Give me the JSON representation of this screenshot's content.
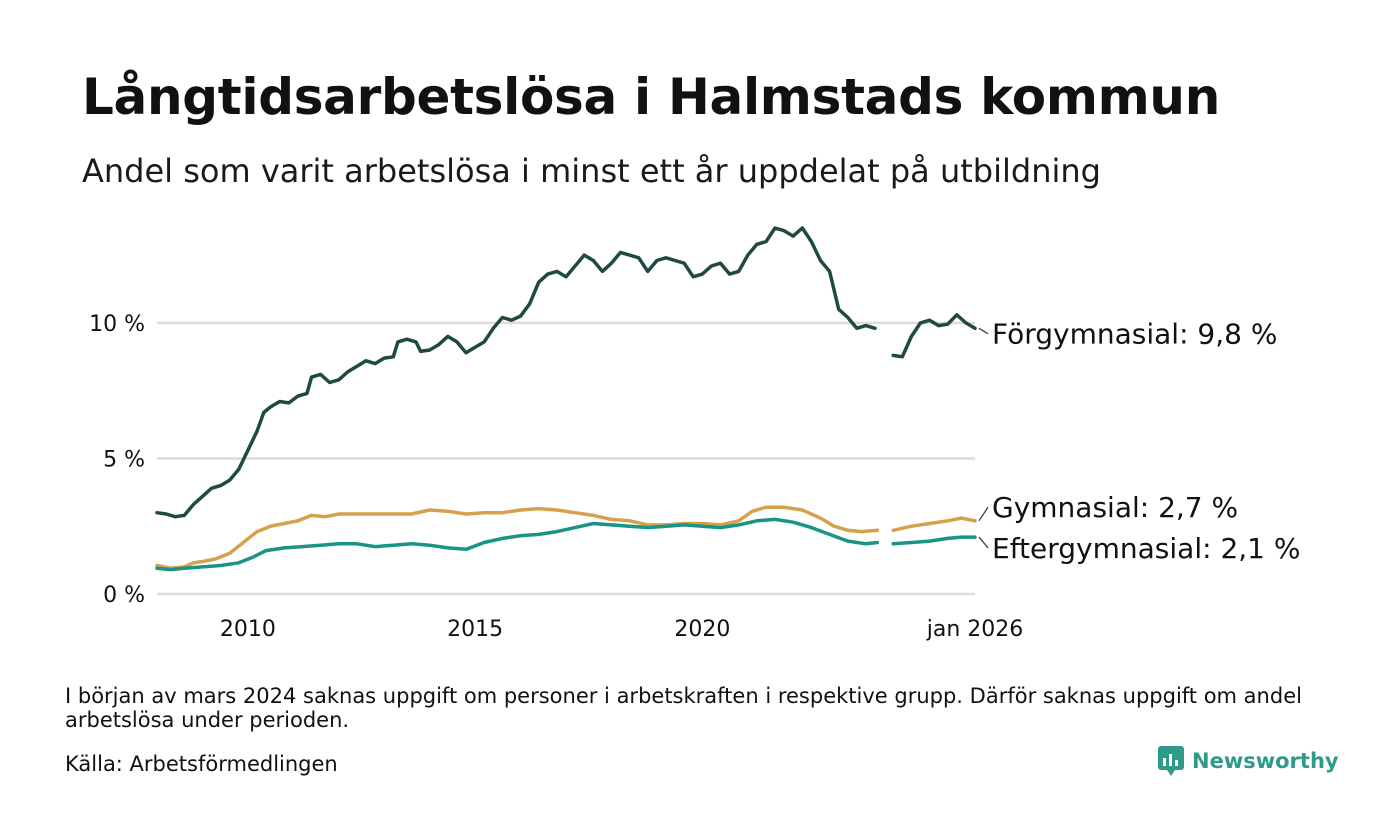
{
  "title": "Långtidsarbetslösa i Halmstads kommun",
  "subtitle": "Andel som varit arbetslösa i minst ett år uppdelat på utbildning",
  "note": "I början av mars 2024 saknas uppgift om personer i arbetskraften i respektive grupp. Därför saknas uppgift om andel arbetslösa under perioden.",
  "source": "Källa: Arbetsförmedlingen",
  "brand": {
    "name": "Newsworthy",
    "icon": "newsworthy-logo-icon",
    "color": "#2f9a8a"
  },
  "chart_data": {
    "type": "line",
    "title": "Långtidsarbetslösa i Halmstads kommun",
    "xlabel": "",
    "ylabel": "",
    "xlim": [
      2008.0,
      2026.0
    ],
    "ylim": [
      0,
      13.5
    ],
    "y_ticks": [
      {
        "value": 0,
        "label": "0 %"
      },
      {
        "value": 5,
        "label": "5 %"
      },
      {
        "value": 10,
        "label": "10 %"
      }
    ],
    "x_ticks": [
      {
        "value": 2010,
        "label": "2010"
      },
      {
        "value": 2015,
        "label": "2015"
      },
      {
        "value": 2020,
        "label": "2020"
      },
      {
        "value": 2026.0,
        "label": "jan 2026"
      }
    ],
    "grid": true,
    "gap": {
      "from": 2023.85,
      "to": 2024.2,
      "description": "saknad uppgift mars 2024"
    },
    "series": [
      {
        "name": "Förgymnasial",
        "label": "Förgymnasial: 9,8 %",
        "color": "#1f4a43",
        "label_value": 9.6,
        "points": [
          [
            2008.0,
            3.0
          ],
          [
            2008.2,
            2.95
          ],
          [
            2008.4,
            2.85
          ],
          [
            2008.6,
            2.9
          ],
          [
            2008.8,
            3.3
          ],
          [
            2009.0,
            3.6
          ],
          [
            2009.2,
            3.9
          ],
          [
            2009.4,
            4.0
          ],
          [
            2009.6,
            4.2
          ],
          [
            2009.8,
            4.6
          ],
          [
            2010.0,
            5.3
          ],
          [
            2010.2,
            6.0
          ],
          [
            2010.35,
            6.7
          ],
          [
            2010.5,
            6.9
          ],
          [
            2010.7,
            7.1
          ],
          [
            2010.9,
            7.05
          ],
          [
            2011.1,
            7.3
          ],
          [
            2011.3,
            7.4
          ],
          [
            2011.4,
            8.0
          ],
          [
            2011.6,
            8.1
          ],
          [
            2011.8,
            7.8
          ],
          [
            2012.0,
            7.9
          ],
          [
            2012.2,
            8.2
          ],
          [
            2012.4,
            8.4
          ],
          [
            2012.6,
            8.6
          ],
          [
            2012.8,
            8.5
          ],
          [
            2013.0,
            8.7
          ],
          [
            2013.2,
            8.75
          ],
          [
            2013.3,
            9.3
          ],
          [
            2013.5,
            9.4
          ],
          [
            2013.7,
            9.3
          ],
          [
            2013.8,
            8.95
          ],
          [
            2014.0,
            9.0
          ],
          [
            2014.2,
            9.2
          ],
          [
            2014.4,
            9.5
          ],
          [
            2014.6,
            9.3
          ],
          [
            2014.8,
            8.9
          ],
          [
            2015.0,
            9.1
          ],
          [
            2015.2,
            9.3
          ],
          [
            2015.4,
            9.8
          ],
          [
            2015.6,
            10.2
          ],
          [
            2015.8,
            10.1
          ],
          [
            2016.0,
            10.25
          ],
          [
            2016.2,
            10.7
          ],
          [
            2016.4,
            11.5
          ],
          [
            2016.6,
            11.8
          ],
          [
            2016.8,
            11.9
          ],
          [
            2017.0,
            11.7
          ],
          [
            2017.2,
            12.1
          ],
          [
            2017.4,
            12.5
          ],
          [
            2017.6,
            12.3
          ],
          [
            2017.8,
            11.9
          ],
          [
            2018.0,
            12.2
          ],
          [
            2018.2,
            12.6
          ],
          [
            2018.4,
            12.5
          ],
          [
            2018.6,
            12.4
          ],
          [
            2018.8,
            11.9
          ],
          [
            2019.0,
            12.3
          ],
          [
            2019.2,
            12.4
          ],
          [
            2019.4,
            12.3
          ],
          [
            2019.6,
            12.2
          ],
          [
            2019.8,
            11.7
          ],
          [
            2020.0,
            11.8
          ],
          [
            2020.2,
            12.1
          ],
          [
            2020.4,
            12.2
          ],
          [
            2020.6,
            11.8
          ],
          [
            2020.8,
            11.9
          ],
          [
            2021.0,
            12.5
          ],
          [
            2021.2,
            12.9
          ],
          [
            2021.4,
            13.0
          ],
          [
            2021.6,
            13.5
          ],
          [
            2021.8,
            13.4
          ],
          [
            2022.0,
            13.2
          ],
          [
            2022.2,
            13.5
          ],
          [
            2022.4,
            13.0
          ],
          [
            2022.6,
            12.3
          ],
          [
            2022.8,
            11.9
          ],
          [
            2023.0,
            10.5
          ],
          [
            2023.2,
            10.2
          ],
          [
            2023.4,
            9.8
          ],
          [
            2023.6,
            9.9
          ],
          [
            2023.8,
            9.8
          ],
          [
            2023.85,
            null
          ],
          [
            2024.2,
            8.8
          ],
          [
            2024.4,
            8.75
          ],
          [
            2024.6,
            9.5
          ],
          [
            2024.8,
            10.0
          ],
          [
            2025.0,
            10.1
          ],
          [
            2025.2,
            9.9
          ],
          [
            2025.4,
            9.95
          ],
          [
            2025.6,
            10.3
          ],
          [
            2025.8,
            10.0
          ],
          [
            2026.0,
            9.8
          ]
        ]
      },
      {
        "name": "Gymnasial",
        "label": "Gymnasial: 2,7 %",
        "color": "#d4a24c",
        "label_value": 3.2,
        "points": [
          [
            2008.0,
            1.05
          ],
          [
            2008.3,
            0.95
          ],
          [
            2008.6,
            1.0
          ],
          [
            2008.8,
            1.15
          ],
          [
            2009.0,
            1.2
          ],
          [
            2009.3,
            1.3
          ],
          [
            2009.6,
            1.5
          ],
          [
            2009.9,
            1.9
          ],
          [
            2010.2,
            2.3
          ],
          [
            2010.5,
            2.5
          ],
          [
            2010.8,
            2.6
          ],
          [
            2011.1,
            2.7
          ],
          [
            2011.4,
            2.9
          ],
          [
            2011.7,
            2.85
          ],
          [
            2012.0,
            2.95
          ],
          [
            2012.4,
            2.95
          ],
          [
            2012.8,
            2.95
          ],
          [
            2013.2,
            2.95
          ],
          [
            2013.6,
            2.95
          ],
          [
            2014.0,
            3.1
          ],
          [
            2014.4,
            3.05
          ],
          [
            2014.8,
            2.95
          ],
          [
            2015.2,
            3.0
          ],
          [
            2015.6,
            3.0
          ],
          [
            2016.0,
            3.1
          ],
          [
            2016.4,
            3.15
          ],
          [
            2016.8,
            3.1
          ],
          [
            2017.2,
            3.0
          ],
          [
            2017.6,
            2.9
          ],
          [
            2018.0,
            2.75
          ],
          [
            2018.4,
            2.7
          ],
          [
            2018.8,
            2.55
          ],
          [
            2019.2,
            2.55
          ],
          [
            2019.6,
            2.6
          ],
          [
            2020.0,
            2.6
          ],
          [
            2020.4,
            2.55
          ],
          [
            2020.8,
            2.7
          ],
          [
            2021.1,
            3.05
          ],
          [
            2021.4,
            3.2
          ],
          [
            2021.8,
            3.2
          ],
          [
            2022.2,
            3.1
          ],
          [
            2022.6,
            2.8
          ],
          [
            2022.9,
            2.5
          ],
          [
            2023.2,
            2.35
          ],
          [
            2023.5,
            2.3
          ],
          [
            2023.85,
            2.35
          ],
          [
            2023.85,
            null
          ],
          [
            2024.2,
            2.35
          ],
          [
            2024.6,
            2.5
          ],
          [
            2025.0,
            2.6
          ],
          [
            2025.4,
            2.7
          ],
          [
            2025.7,
            2.8
          ],
          [
            2026.0,
            2.7
          ]
        ]
      },
      {
        "name": "Eftergymnasial",
        "label": "Eftergymnasial: 2,1 %",
        "color": "#1a9485",
        "label_value": 1.7,
        "points": [
          [
            2008.0,
            0.95
          ],
          [
            2008.3,
            0.9
          ],
          [
            2008.6,
            0.95
          ],
          [
            2009.0,
            1.0
          ],
          [
            2009.4,
            1.05
          ],
          [
            2009.8,
            1.15
          ],
          [
            2010.1,
            1.35
          ],
          [
            2010.4,
            1.6
          ],
          [
            2010.8,
            1.7
          ],
          [
            2011.2,
            1.75
          ],
          [
            2011.6,
            1.8
          ],
          [
            2012.0,
            1.85
          ],
          [
            2012.4,
            1.85
          ],
          [
            2012.8,
            1.75
          ],
          [
            2013.2,
            1.8
          ],
          [
            2013.6,
            1.85
          ],
          [
            2014.0,
            1.8
          ],
          [
            2014.4,
            1.7
          ],
          [
            2014.8,
            1.65
          ],
          [
            2015.2,
            1.9
          ],
          [
            2015.6,
            2.05
          ],
          [
            2016.0,
            2.15
          ],
          [
            2016.4,
            2.2
          ],
          [
            2016.8,
            2.3
          ],
          [
            2017.2,
            2.45
          ],
          [
            2017.6,
            2.6
          ],
          [
            2018.0,
            2.55
          ],
          [
            2018.4,
            2.5
          ],
          [
            2018.8,
            2.45
          ],
          [
            2019.2,
            2.5
          ],
          [
            2019.6,
            2.55
          ],
          [
            2020.0,
            2.5
          ],
          [
            2020.4,
            2.45
          ],
          [
            2020.8,
            2.55
          ],
          [
            2021.2,
            2.7
          ],
          [
            2021.6,
            2.75
          ],
          [
            2022.0,
            2.65
          ],
          [
            2022.4,
            2.45
          ],
          [
            2022.8,
            2.2
          ],
          [
            2023.2,
            1.95
          ],
          [
            2023.6,
            1.85
          ],
          [
            2023.85,
            1.9
          ],
          [
            2023.85,
            null
          ],
          [
            2024.2,
            1.85
          ],
          [
            2024.6,
            1.9
          ],
          [
            2025.0,
            1.95
          ],
          [
            2025.4,
            2.05
          ],
          [
            2025.7,
            2.1
          ],
          [
            2026.0,
            2.1
          ]
        ]
      }
    ]
  }
}
